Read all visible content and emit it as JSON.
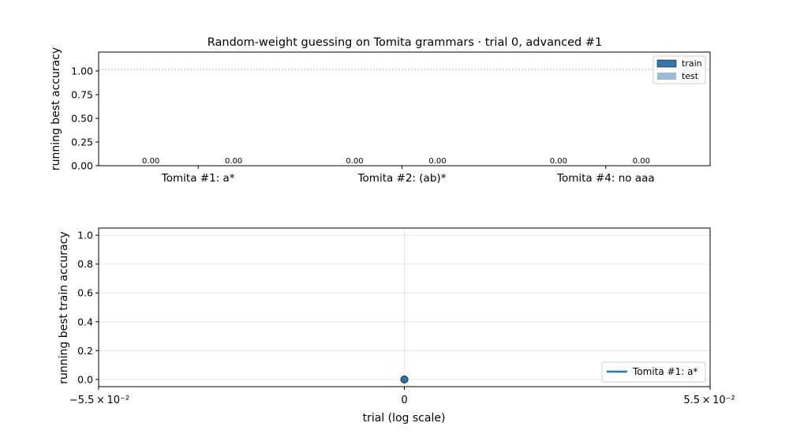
{
  "figure": {
    "title": "Random-weight guessing on Tomita grammars  ·  trial 0, advanced #1"
  },
  "chart_data": [
    {
      "type": "bar",
      "categories": [
        "Tomita #1: a*",
        "Tomita #2: (ab)*",
        "Tomita #4: no aaa"
      ],
      "series": [
        {
          "name": "train",
          "values": [
            0.0,
            0.0,
            0.0
          ],
          "labels": [
            "0.00",
            "0.00",
            "0.00"
          ],
          "color": "#2f7ab5"
        },
        {
          "name": "test",
          "values": [
            0.0,
            0.0,
            0.0
          ],
          "labels": [
            "0.00",
            "0.00",
            "0.00"
          ],
          "color": "#9bbcd8"
        }
      ],
      "title": "",
      "xlabel": "",
      "ylabel": "running best accuracy",
      "ylim": [
        0,
        1.2
      ],
      "yticks": [
        "0.00",
        "0.25",
        "0.50",
        "0.75",
        "1.00"
      ],
      "reference_line": 1.0,
      "legend": "top-right",
      "grid": false
    },
    {
      "type": "line",
      "series": [
        {
          "name": "Tomita #1: a*",
          "x": [
            0
          ],
          "y": [
            0.0
          ],
          "color": "#1f77b4"
        }
      ],
      "xlabel": "trial (log scale)",
      "ylabel": "running best train accuracy",
      "xscale": "symlog",
      "xlim": [
        -0.055,
        0.055
      ],
      "xticks": [
        "−5.5 × 10⁻²",
        "0",
        "5.5 × 10⁻²"
      ],
      "ylim": [
        -0.05,
        1.05
      ],
      "yticks": [
        "0.0",
        "0.2",
        "0.4",
        "0.6",
        "0.8",
        "1.0"
      ],
      "legend": "bottom-right",
      "grid": true
    }
  ]
}
